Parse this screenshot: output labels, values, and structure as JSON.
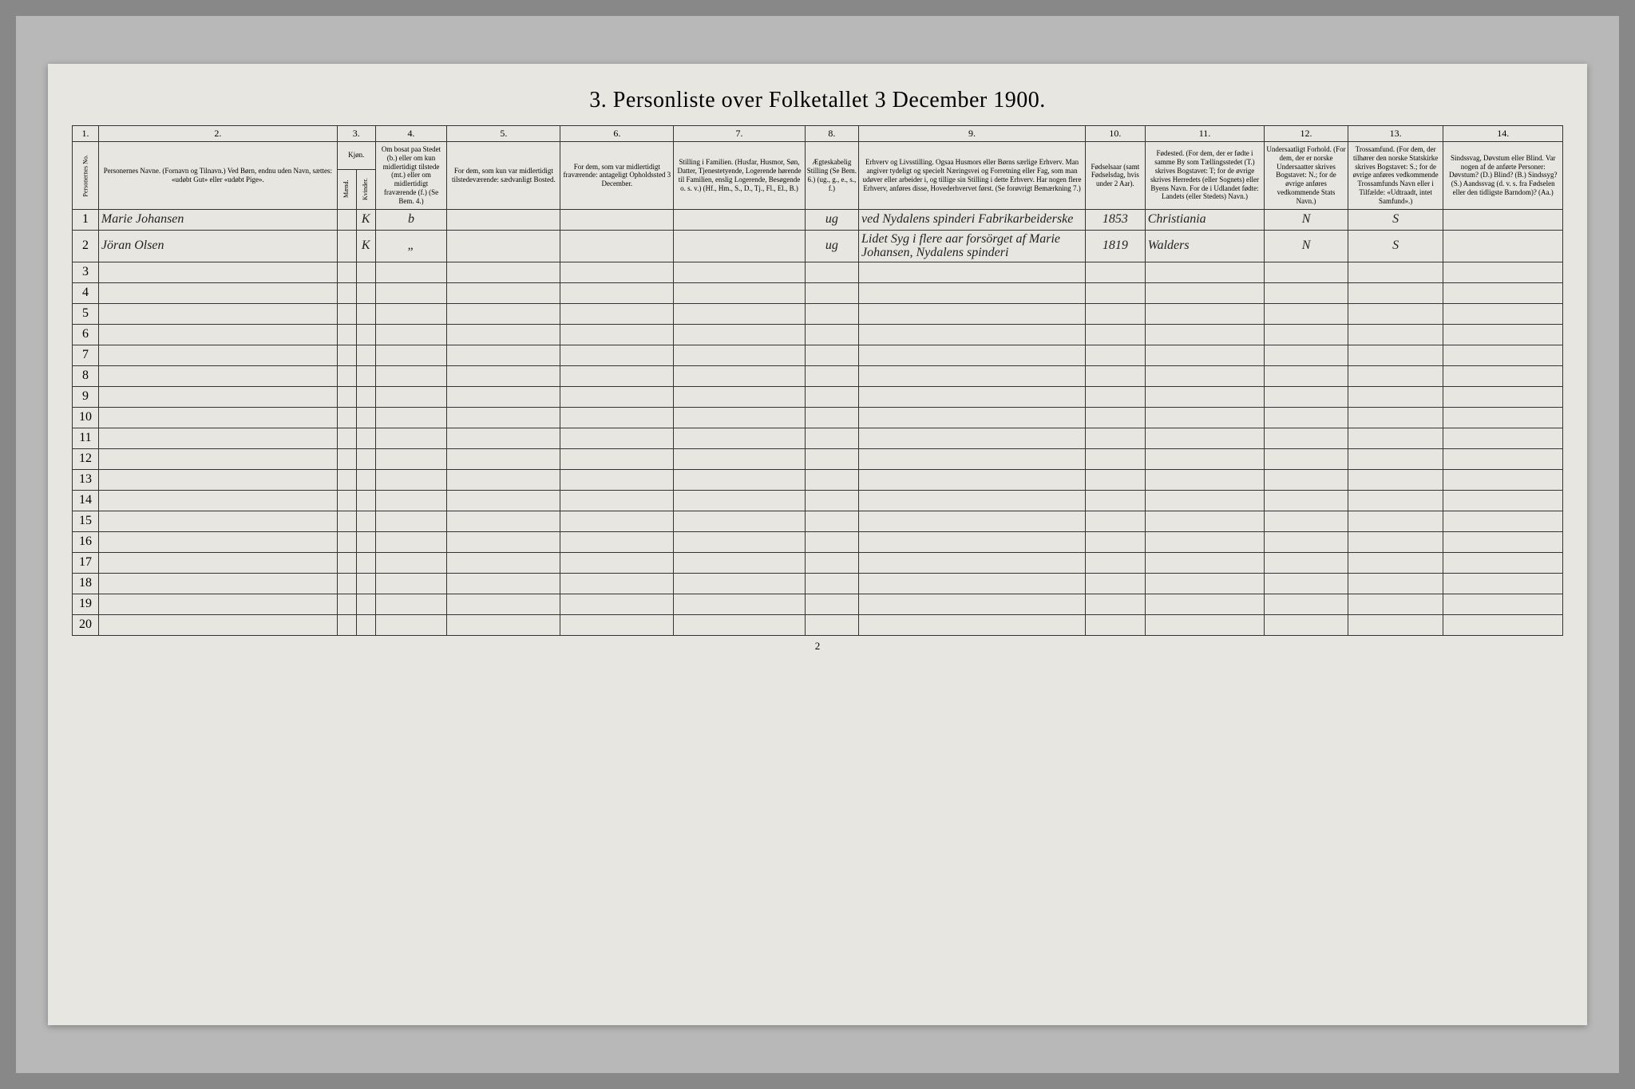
{
  "title": "3. Personliste over Folketallet 3 December 1900.",
  "page_number": "2",
  "column_numbers": [
    "1.",
    "2.",
    "3.",
    "4.",
    "5.",
    "6.",
    "7.",
    "8.",
    "9.",
    "10.",
    "11.",
    "12.",
    "13.",
    "14."
  ],
  "headers": {
    "col1": "Personernes No.",
    "col2": "Personernes Navne.\n(Fornavn og Tilnavn.)\nVed Børn, endnu uden Navn, sættes: «udøbt Gut» eller «udøbt Pige».",
    "col3": "Kjøn.",
    "col3a": "Mænd.",
    "col3b": "Kvinder.",
    "col4": "Om bosat paa Stedet (b.) eller om kun midlertidigt tilstede (mt.) eller om midlertidigt fraværende (f.) (Se Bem. 4.)",
    "col5": "For dem, som kun var midlertidigt tilstedeværende:\nsædvanligt Bosted.",
    "col6": "For dem, som var midlertidigt fraværende:\nantageligt Opholdssted 3 December.",
    "col7": "Stilling i Familien.\n(Husfar, Husmor, Søn, Datter, Tjenestetyende, Logerende hørende til Familien, enslig Logerende, Besøgende o. s. v.)\n(Hf., Hm., S., D., Tj., Fl., El., B.)",
    "col8": "Ægteskabelig Stilling (Se Bem. 6.)\n(ug., g., e., s., f.)",
    "col9": "Erhverv og Livsstilling.\nOgsaa Husmors eller Børns særlige Erhverv. Man angiver tydeligt og specielt Næringsvei og Forretning eller Fag, som man udøver eller arbeider i, og tillige sin Stilling i dette Erhverv. Har nogen flere Erhverv, anføres disse, Hovederhvervet først.\n(Se forøvrigt Bemærkning 7.)",
    "col10": "Fødselsaar\n(samt Fødselsdag, hvis under 2 Aar).",
    "col11": "Fødested.\n(For dem, der er fødte i samme By som Tællingsstedet (T.) skrives Bogstavet: T;\nfor de øvrige skrives Herredets (eller Sognets) eller Byens Navn.\nFor de i Udlandet fødte: Landets (eller Stedets) Navn.)",
    "col12": "Undersaatligt Forhold.\n(For dem, der er norske Undersaatter skrives Bogstavet: N.; for de øvrige anføres vedkommende Stats Navn.)",
    "col13": "Trossamfund.\n(For dem, der tilhører den norske Statskirke skrives Bogstavet: S.; for de øvrige anføres vedkommende Trossamfunds Navn eller i Tilfælde: «Udtraadt, intet Samfund».)",
    "col14": "Sindssvag, Døvstum eller Blind.\nVar nogen af de anførte Personer:\nDøvstum? (D.)\nBlind? (B.)\nSindssyg? (S.)\nAandssvag (d. v. s. fra Fødselen eller den tidligste Barndom)? (Aa.)"
  },
  "rows": [
    {
      "num": "1",
      "name": "Marie Johansen",
      "sex_m": "",
      "sex_k": "K",
      "residence": "b",
      "col5": "",
      "col6": "",
      "col7": "",
      "col8": "ug",
      "col9": "ved Nydalens spinderi\nFabrikarbeiderske",
      "col10": "1853",
      "col11": "Christiania",
      "col12": "N",
      "col13": "S",
      "col14": ""
    },
    {
      "num": "2",
      "name": "Jöran Olsen",
      "sex_m": "",
      "sex_k": "K",
      "residence": "„",
      "col5": "",
      "col6": "",
      "col7": "",
      "col8": "ug",
      "col9": "Lidet Syg i flere aar forsörget af Marie Johansen, Nydalens spinderi",
      "col10": "1819",
      "col11": "Walders",
      "col12": "N",
      "col13": "S",
      "col14": ""
    }
  ],
  "empty_rows": 18
}
